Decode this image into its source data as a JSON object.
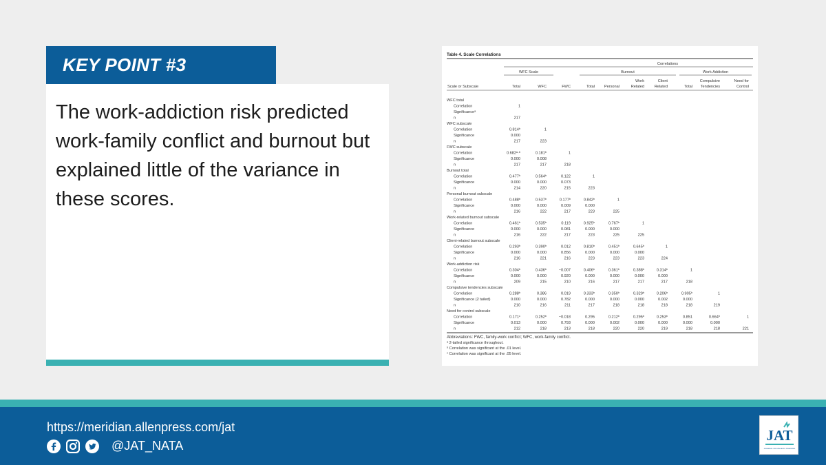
{
  "key_point": {
    "label": "KEY POINT #3",
    "text": "The work-addiction risk predicted work-family conflict and burnout but explained little of the variance in these scores."
  },
  "table": {
    "title": "Table 4.   Scale Correlations",
    "super_header": "Correlations",
    "groups": [
      "WFC Scale",
      "Burnout",
      "Work Addiction"
    ],
    "columns": [
      "Scale or Subscale",
      "Total",
      "WFC",
      "FWC",
      "Total",
      "Personal",
      "Work\nRelated",
      "Client\nRelated",
      "Total",
      "Compulsive\nTendencies",
      "Need for\nControl"
    ],
    "sections": [
      {
        "name": "WFC total",
        "rows": [
          {
            "label": "Correlation",
            "values": [
              "1"
            ]
          },
          {
            "label": "Significanceᵃ",
            "values": []
          },
          {
            "label": "n",
            "values": [
              "217"
            ]
          }
        ]
      },
      {
        "name": "WFC subscale",
        "rows": [
          {
            "label": "Correlation",
            "values": [
              "0.814ᵇ",
              "1"
            ]
          },
          {
            "label": "Significance",
            "values": [
              "0.000"
            ]
          },
          {
            "label": "n",
            "values": [
              "217",
              "223"
            ]
          }
        ]
      },
      {
        "name": "FWC subscale",
        "rows": [
          {
            "label": "Correlation",
            "values": [
              "0.682ᵃ·ᵇ",
              "0.181ᵇ",
              "1"
            ]
          },
          {
            "label": "Significance",
            "values": [
              "0.000",
              "0.008"
            ]
          },
          {
            "label": "n",
            "values": [
              "217",
              "217",
              "218"
            ]
          }
        ]
      },
      {
        "name": "Burnout total",
        "rows": [
          {
            "label": "Correlation",
            "values": [
              "0.477ᵇ",
              "0.564ᵇ",
              "0.122",
              "1"
            ]
          },
          {
            "label": "Significance",
            "values": [
              "0.000",
              "0.000",
              "0.073"
            ]
          },
          {
            "label": "n",
            "values": [
              "214",
              "220",
              "215",
              "223"
            ]
          }
        ]
      },
      {
        "name": "Personal burnout subscale",
        "rows": [
          {
            "label": "Correlation",
            "values": [
              "0.488ᵇ",
              "0.537ᵇ",
              "0.177ᵇ",
              "0.842ᵇ",
              "1"
            ]
          },
          {
            "label": "Significance",
            "values": [
              "0.000",
              "0.000",
              "0.009",
              "0.000"
            ]
          },
          {
            "label": "n",
            "values": [
              "216",
              "222",
              "217",
              "223",
              "225"
            ]
          }
        ]
      },
      {
        "name": "Work-related burnout subscale",
        "rows": [
          {
            "label": "Correlation",
            "values": [
              "0.461ᵇ",
              "0.535ᵇ",
              "0.119",
              "0.925ᵇ",
              "0.767ᵇ",
              "1"
            ]
          },
          {
            "label": "Significance",
            "values": [
              "0.000",
              "0.000",
              "0.081",
              "0.000",
              "0.000"
            ]
          },
          {
            "label": "n",
            "values": [
              "216",
              "222",
              "217",
              "223",
              "225",
              "225"
            ]
          }
        ]
      },
      {
        "name": "Client-related burnout subscale",
        "rows": [
          {
            "label": "Correlation",
            "values": [
              "0.293ᵇ",
              "0.390ᵇ",
              "0.012",
              "0.810ᵇ",
              "0.451ᵇ",
              "0.645ᵇ",
              "1"
            ]
          },
          {
            "label": "Significance",
            "values": [
              "0.000",
              "0.000",
              "0.856",
              "0.000",
              "0.000",
              "0.000"
            ]
          },
          {
            "label": "n",
            "values": [
              "216",
              "221",
              "216",
              "223",
              "223",
              "223",
              "224"
            ]
          }
        ]
      },
      {
        "name": "Work-addiction risk",
        "rows": [
          {
            "label": "Correlation",
            "values": [
              "0.304ᵇ",
              "0.436ᵇ",
              "−0.007",
              "0.406ᵇ",
              "0.361ᵇ",
              "0.388ᵇ",
              "0.314ᵇ",
              "1"
            ]
          },
          {
            "label": "Significance",
            "values": [
              "0.000",
              "0.000",
              "0.920",
              "0.000",
              "0.000",
              "0.000",
              "0.000"
            ]
          },
          {
            "label": "n",
            "values": [
              "209",
              "215",
              "210",
              "216",
              "217",
              "217",
              "217",
              "218"
            ]
          }
        ]
      },
      {
        "name": "Compulsive tendencies subscale",
        "rows": [
          {
            "label": "Correlation",
            "values": [
              "0.288ᵇ",
              "0.386",
              "0.019",
              "0.333ᵇ",
              "0.350ᵇ",
              "0.329ᵇ",
              "0.206ᵇ",
              "0.905ᵇ",
              "1"
            ]
          },
          {
            "label": "Significance (2 tailed)",
            "values": [
              "0.000",
              "0.000",
              "0.782",
              "0.000",
              "0.000",
              "0.000",
              "0.002",
              "0.000"
            ]
          },
          {
            "label": "n",
            "values": [
              "210",
              "216",
              "211",
              "217",
              "218",
              "218",
              "218",
              "218",
              "219"
            ]
          }
        ]
      },
      {
        "name": "Need for control subscale",
        "rows": [
          {
            "label": "Correlation",
            "values": [
              "0.171ᶜ",
              "0.252ᵇ",
              "−0.018",
              "0.295",
              "0.212ᵇ",
              "0.295ᵇ",
              "0.253ᵇ",
              "0.851",
              "0.664ᵇ",
              "1"
            ]
          },
          {
            "label": "Significance",
            "values": [
              "0.013",
              "0.000",
              "0.793",
              "0.000",
              "0.002",
              "0.000",
              "0.000",
              "0.000",
              "0.000"
            ]
          },
          {
            "label": "n",
            "values": [
              "212",
              "218",
              "213",
              "218",
              "220",
              "220",
              "219",
              "218",
              "218",
              "221"
            ]
          }
        ]
      }
    ],
    "footnotes": [
      "Abbreviations: FWC, family-work conflict; WFC, work-family conflict.",
      "ᵃ 2-tailed significance throughout.",
      "ᵇ Correlation was significant at the .01 level.",
      "ᶜ Correlation was significant at the .05 level."
    ]
  },
  "footer": {
    "url": "https://meridian.allenpress.com/jat",
    "handle": "@JAT_NATA",
    "icons": [
      "facebook-icon",
      "instagram-icon",
      "twitter-icon"
    ],
    "logo_text": "JAT",
    "logo_subtext": "JOURNAL OF ATHLETIC TRAINING"
  },
  "colors": {
    "blue": "#0c5d99",
    "teal": "#3ab1b2",
    "background": "#eeeeee"
  }
}
